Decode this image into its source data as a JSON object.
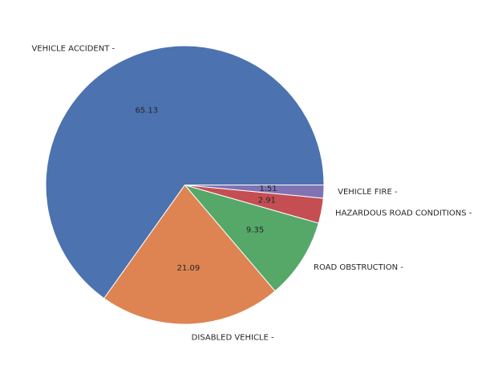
{
  "chart_data": {
    "type": "pie",
    "title": "",
    "start_angle": 0,
    "direction": "counterclockwise",
    "slices": [
      {
        "label": "VEHICLE ACCIDENT -",
        "value": 65.13,
        "value_label": "65.13",
        "color": "#4c72b0"
      },
      {
        "label": "DISABLED VEHICLE -",
        "value": 21.09,
        "value_label": "21.09",
        "color": "#dd8452"
      },
      {
        "label": "ROAD OBSTRUCTION -",
        "value": 9.35,
        "value_label": "9.35",
        "color": "#55a868"
      },
      {
        "label": "HAZARDOUS ROAD CONDITIONS -",
        "value": 2.91,
        "value_label": "2.91",
        "color": "#c44e52"
      },
      {
        "label": "VEHICLE FIRE -",
        "value": 1.51,
        "value_label": "1.51",
        "color": "#8172b3"
      }
    ]
  }
}
